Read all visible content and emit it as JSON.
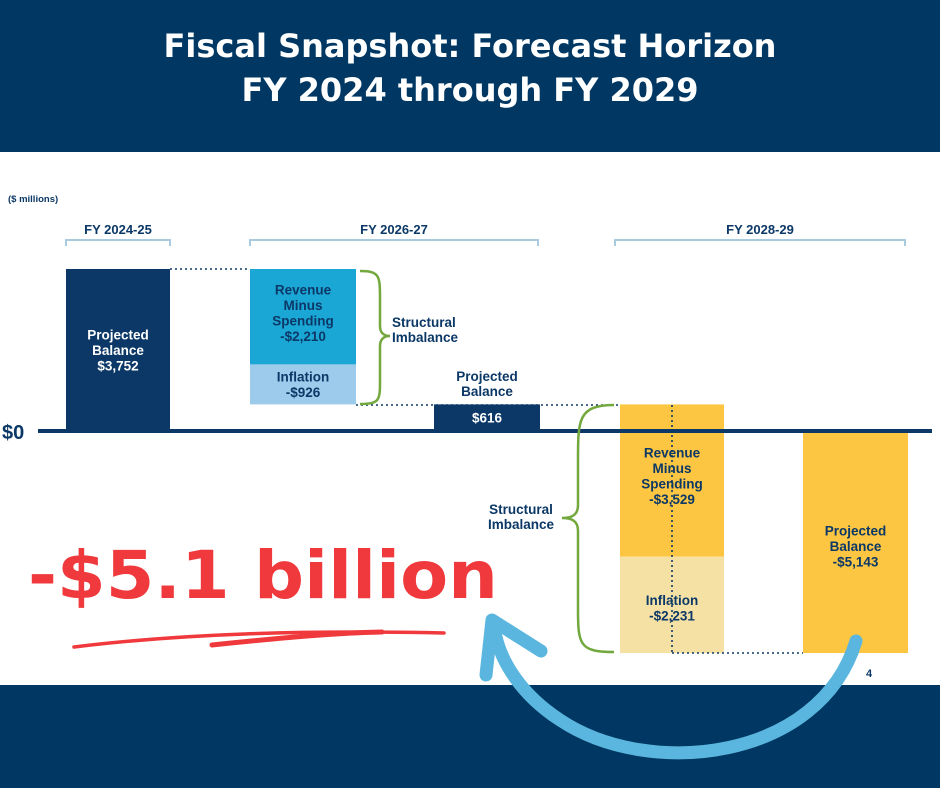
{
  "title": {
    "line1": "Fiscal Snapshot: Forecast Horizon",
    "line2": "FY 2024 through FY 2029"
  },
  "colors": {
    "navy": "#0b3866",
    "teal": "#1ba7d6",
    "light_blue": "#9ccbeb",
    "gold": "#fdc642",
    "light_gold": "#f6e1a5",
    "green_brace": "#72a83d",
    "red_text": "#f0393c",
    "arrow_blue": "#5ab6de",
    "bracket": "#a8cbe0"
  },
  "chart_data": {
    "type": "bar",
    "unit_label": "($ millions)",
    "zero_label": "$0",
    "page_number": "4",
    "periods": [
      "FY 2024-25",
      "FY 2026-27",
      "FY 2028-29"
    ],
    "segments": [
      {
        "id": "pb1",
        "label_lines": [
          "Projected",
          "Balance",
          "$3,752"
        ],
        "value": 3752,
        "base": 0,
        "color": "navy"
      },
      {
        "id": "rms1",
        "label_lines": [
          "Revenue",
          "Minus",
          "Spending",
          "-$2,210"
        ],
        "value": -2210,
        "base": 3752,
        "color": "teal"
      },
      {
        "id": "inf1",
        "label_lines": [
          "Inflation",
          "-$926"
        ],
        "value": -926,
        "base": 1542,
        "color": "light_blue"
      },
      {
        "id": "pb2",
        "label_lines": [
          "$616"
        ],
        "value": 616,
        "base": 0,
        "color": "navy",
        "caption_lines": [
          "Projected",
          "Balance"
        ]
      },
      {
        "id": "rms2",
        "label_lines": [
          "Revenue",
          "Minus",
          "Spending",
          "-$3,529"
        ],
        "value": -3529,
        "base": 616,
        "color": "gold"
      },
      {
        "id": "inf2",
        "label_lines": [
          "Inflation",
          "-$2,231"
        ],
        "value": -2231,
        "base": -2913,
        "color": "light_gold"
      },
      {
        "id": "pb3",
        "label_lines": [
          "Projected",
          "Balance",
          "-$5,143"
        ],
        "value": -5143,
        "base": 0,
        "color": "gold"
      }
    ],
    "braces": [
      {
        "label_lines": [
          "Structural",
          "Imbalance"
        ]
      },
      {
        "label_lines": [
          "Structural",
          "Imbalance"
        ]
      }
    ],
    "ylim": [
      -5143,
      3752
    ]
  },
  "annotation": {
    "headline": "-$5.1 billion"
  }
}
